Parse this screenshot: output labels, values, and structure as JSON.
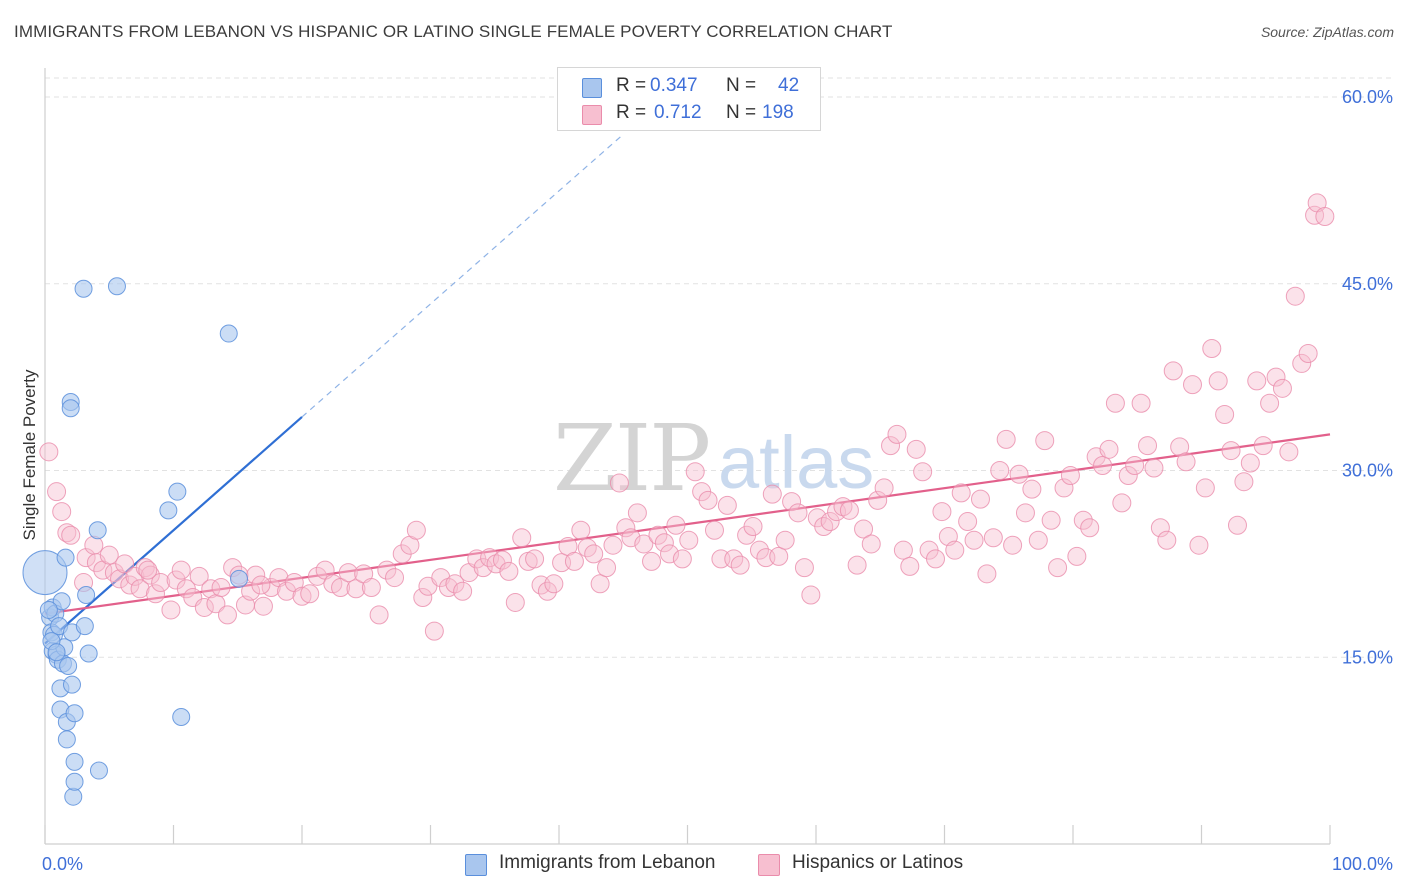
{
  "title": "IMMIGRANTS FROM LEBANON VS HISPANIC OR LATINO SINGLE FEMALE POVERTY CORRELATION CHART",
  "source": "Source: ZipAtlas.com",
  "colors": {
    "series1_fill": "#a9c6ee",
    "series1_stroke": "#5a8fdc",
    "series1_line": "#2f6fd4",
    "series2_fill": "#f7bfd0",
    "series2_stroke": "#ea8cab",
    "series2_line": "#e2608b",
    "axis_text": "#3f6fd8",
    "grid": "#e2e2e2"
  },
  "legend": {
    "r_label": "R =",
    "n_label": "N =",
    "series1": {
      "r": "0.347",
      "n": "42"
    },
    "series2": {
      "r": "0.712",
      "n": "198"
    }
  },
  "chart_data": {
    "type": "scatter",
    "title": "IMMIGRANTS FROM LEBANON VS HISPANIC OR LATINO SINGLE FEMALE POVERTY CORRELATION CHART",
    "xlabel": "",
    "ylabel": "Single Female Poverty",
    "xlim": [
      0,
      100
    ],
    "ylim": [
      0,
      62
    ],
    "x_tick_labels": [
      "0.0%",
      "100.0%"
    ],
    "y_ticks": [
      15,
      30,
      45,
      60
    ],
    "y_tick_labels": [
      "15.0%",
      "30.0%",
      "45.0%",
      "60.0%"
    ],
    "watermark": "ZIPatlas",
    "series": [
      {
        "name": "Immigrants from Lebanon",
        "r": 0.347,
        "n": 42,
        "trend": {
          "x0": 0,
          "y0": 16.1,
          "x1": 20,
          "y1": 34.3,
          "dashed_to_x": 45,
          "dashed_to_y": 57
        },
        "points": [
          [
            0.0,
            21.8
          ],
          [
            0.4,
            18.2
          ],
          [
            0.5,
            17.0
          ],
          [
            0.6,
            15.5
          ],
          [
            0.6,
            19.0
          ],
          [
            0.7,
            16.8
          ],
          [
            0.8,
            18.5
          ],
          [
            0.9,
            15.2
          ],
          [
            1.0,
            14.8
          ],
          [
            1.1,
            17.5
          ],
          [
            1.2,
            12.5
          ],
          [
            1.2,
            10.8
          ],
          [
            1.3,
            19.5
          ],
          [
            1.4,
            14.5
          ],
          [
            1.5,
            15.8
          ],
          [
            1.6,
            23.0
          ],
          [
            1.7,
            9.8
          ],
          [
            1.7,
            8.4
          ],
          [
            1.8,
            14.3
          ],
          [
            2.0,
            35.5
          ],
          [
            2.0,
            35.0
          ],
          [
            2.1,
            12.8
          ],
          [
            2.1,
            17.0
          ],
          [
            2.2,
            3.8
          ],
          [
            2.3,
            10.5
          ],
          [
            2.3,
            5.0
          ],
          [
            2.3,
            6.6
          ],
          [
            3.0,
            44.6
          ],
          [
            3.1,
            17.5
          ],
          [
            3.2,
            20.0
          ],
          [
            3.4,
            15.3
          ],
          [
            4.1,
            25.2
          ],
          [
            4.2,
            5.9
          ],
          [
            5.6,
            44.8
          ],
          [
            9.6,
            26.8
          ],
          [
            10.3,
            28.3
          ],
          [
            10.6,
            10.2
          ],
          [
            14.3,
            41.0
          ],
          [
            15.1,
            21.3
          ],
          [
            0.3,
            18.8
          ],
          [
            0.5,
            16.3
          ],
          [
            0.9,
            15.4
          ]
        ]
      },
      {
        "name": "Hispanics or Latinos",
        "r": 0.712,
        "n": 198,
        "trend": {
          "x0": 0,
          "y0": 18.5,
          "x1": 100,
          "y1": 32.9
        },
        "points": [
          [
            0.3,
            31.5
          ],
          [
            0.9,
            28.3
          ],
          [
            1.3,
            26.7
          ],
          [
            1.7,
            25.0
          ],
          [
            2.0,
            24.8
          ],
          [
            3.2,
            23.0
          ],
          [
            3.8,
            24.0
          ],
          [
            4.0,
            22.6
          ],
          [
            4.5,
            22.0
          ],
          [
            5.0,
            23.2
          ],
          [
            5.4,
            21.8
          ],
          [
            5.8,
            21.3
          ],
          [
            6.2,
            22.5
          ],
          [
            6.6,
            20.8
          ],
          [
            7.0,
            21.5
          ],
          [
            7.4,
            20.5
          ],
          [
            7.8,
            22.2
          ],
          [
            8.2,
            21.6
          ],
          [
            8.6,
            20.1
          ],
          [
            9.0,
            21.0
          ],
          [
            9.8,
            18.8
          ],
          [
            10.2,
            21.2
          ],
          [
            10.6,
            22.0
          ],
          [
            11.0,
            20.5
          ],
          [
            11.5,
            19.8
          ],
          [
            12.0,
            21.5
          ],
          [
            12.4,
            19.0
          ],
          [
            12.9,
            20.5
          ],
          [
            13.3,
            19.3
          ],
          [
            13.7,
            20.6
          ],
          [
            14.2,
            18.4
          ],
          [
            14.6,
            22.2
          ],
          [
            15.1,
            21.6
          ],
          [
            15.6,
            19.2
          ],
          [
            16.0,
            20.3
          ],
          [
            16.4,
            21.6
          ],
          [
            17.0,
            19.1
          ],
          [
            17.6,
            20.6
          ],
          [
            18.2,
            21.4
          ],
          [
            18.8,
            20.3
          ],
          [
            19.4,
            21.0
          ],
          [
            20.0,
            19.9
          ],
          [
            20.6,
            20.1
          ],
          [
            21.2,
            21.5
          ],
          [
            21.8,
            22.0
          ],
          [
            22.4,
            20.9
          ],
          [
            23.0,
            20.6
          ],
          [
            23.6,
            21.8
          ],
          [
            24.2,
            20.5
          ],
          [
            24.8,
            21.7
          ],
          [
            25.4,
            20.6
          ],
          [
            26.0,
            18.4
          ],
          [
            26.6,
            22.0
          ],
          [
            27.2,
            21.4
          ],
          [
            27.8,
            23.3
          ],
          [
            28.4,
            24.0
          ],
          [
            28.9,
            25.2
          ],
          [
            29.4,
            19.8
          ],
          [
            29.8,
            20.7
          ],
          [
            30.3,
            17.1
          ],
          [
            30.8,
            21.4
          ],
          [
            31.4,
            20.6
          ],
          [
            31.9,
            20.9
          ],
          [
            32.5,
            20.3
          ],
          [
            33.0,
            21.8
          ],
          [
            33.6,
            22.9
          ],
          [
            34.1,
            22.2
          ],
          [
            34.6,
            23.0
          ],
          [
            35.1,
            22.5
          ],
          [
            35.6,
            22.8
          ],
          [
            36.1,
            21.9
          ],
          [
            36.6,
            19.4
          ],
          [
            37.1,
            24.6
          ],
          [
            37.6,
            22.7
          ],
          [
            38.1,
            22.9
          ],
          [
            38.6,
            20.8
          ],
          [
            39.1,
            20.3
          ],
          [
            39.6,
            20.9
          ],
          [
            40.2,
            22.6
          ],
          [
            40.7,
            23.9
          ],
          [
            41.2,
            22.7
          ],
          [
            41.7,
            25.2
          ],
          [
            42.2,
            23.8
          ],
          [
            42.7,
            23.3
          ],
          [
            43.2,
            20.9
          ],
          [
            43.7,
            22.2
          ],
          [
            44.2,
            24.0
          ],
          [
            44.7,
            29.0
          ],
          [
            45.2,
            25.4
          ],
          [
            45.6,
            24.6
          ],
          [
            46.1,
            26.6
          ],
          [
            46.6,
            24.1
          ],
          [
            47.2,
            22.7
          ],
          [
            47.7,
            24.8
          ],
          [
            48.2,
            24.2
          ],
          [
            48.6,
            23.3
          ],
          [
            49.1,
            25.6
          ],
          [
            49.6,
            22.9
          ],
          [
            50.1,
            24.4
          ],
          [
            50.6,
            29.9
          ],
          [
            51.1,
            28.3
          ],
          [
            51.6,
            27.6
          ],
          [
            52.1,
            25.2
          ],
          [
            52.6,
            22.9
          ],
          [
            53.1,
            27.2
          ],
          [
            53.6,
            22.9
          ],
          [
            54.1,
            22.4
          ],
          [
            54.6,
            24.8
          ],
          [
            55.1,
            25.5
          ],
          [
            55.6,
            23.6
          ],
          [
            56.1,
            23.0
          ],
          [
            56.6,
            28.1
          ],
          [
            57.1,
            23.1
          ],
          [
            57.6,
            24.4
          ],
          [
            58.1,
            27.5
          ],
          [
            58.6,
            26.6
          ],
          [
            59.1,
            22.2
          ],
          [
            59.6,
            20.0
          ],
          [
            60.1,
            26.2
          ],
          [
            60.6,
            25.5
          ],
          [
            61.1,
            25.9
          ],
          [
            61.6,
            26.7
          ],
          [
            62.1,
            27.1
          ],
          [
            62.6,
            26.8
          ],
          [
            63.2,
            22.4
          ],
          [
            63.7,
            25.3
          ],
          [
            64.3,
            24.1
          ],
          [
            64.8,
            27.6
          ],
          [
            65.3,
            28.6
          ],
          [
            65.8,
            32.0
          ],
          [
            66.3,
            32.9
          ],
          [
            66.8,
            23.6
          ],
          [
            67.3,
            22.3
          ],
          [
            67.8,
            31.7
          ],
          [
            68.3,
            29.9
          ],
          [
            68.8,
            23.6
          ],
          [
            69.3,
            22.9
          ],
          [
            69.8,
            26.7
          ],
          [
            70.3,
            24.7
          ],
          [
            70.8,
            23.6
          ],
          [
            71.3,
            28.2
          ],
          [
            71.8,
            25.9
          ],
          [
            72.3,
            24.4
          ],
          [
            72.8,
            27.7
          ],
          [
            73.3,
            21.7
          ],
          [
            73.8,
            24.6
          ],
          [
            74.3,
            30.0
          ],
          [
            74.8,
            32.5
          ],
          [
            75.3,
            24.0
          ],
          [
            75.8,
            29.7
          ],
          [
            76.3,
            26.6
          ],
          [
            76.8,
            28.5
          ],
          [
            77.3,
            24.4
          ],
          [
            77.8,
            32.4
          ],
          [
            78.3,
            26.0
          ],
          [
            78.8,
            22.2
          ],
          [
            79.3,
            28.6
          ],
          [
            79.8,
            29.6
          ],
          [
            80.3,
            23.1
          ],
          [
            80.8,
            26.0
          ],
          [
            81.3,
            25.4
          ],
          [
            81.8,
            31.1
          ],
          [
            82.3,
            30.4
          ],
          [
            82.8,
            31.7
          ],
          [
            83.3,
            35.4
          ],
          [
            83.8,
            27.4
          ],
          [
            84.3,
            29.6
          ],
          [
            84.8,
            30.4
          ],
          [
            85.3,
            35.4
          ],
          [
            85.8,
            32.0
          ],
          [
            86.3,
            30.2
          ],
          [
            86.8,
            25.4
          ],
          [
            87.3,
            24.4
          ],
          [
            87.8,
            38.0
          ],
          [
            88.3,
            31.9
          ],
          [
            88.8,
            30.7
          ],
          [
            89.3,
            36.9
          ],
          [
            89.8,
            24.0
          ],
          [
            90.3,
            28.6
          ],
          [
            90.8,
            39.8
          ],
          [
            91.3,
            37.2
          ],
          [
            91.8,
            34.5
          ],
          [
            92.3,
            31.6
          ],
          [
            92.8,
            25.6
          ],
          [
            93.3,
            29.1
          ],
          [
            93.8,
            30.6
          ],
          [
            94.3,
            37.2
          ],
          [
            94.8,
            32.0
          ],
          [
            95.3,
            35.4
          ],
          [
            95.8,
            37.5
          ],
          [
            96.3,
            36.6
          ],
          [
            96.8,
            31.5
          ],
          [
            97.3,
            44.0
          ],
          [
            97.8,
            38.6
          ],
          [
            98.3,
            39.4
          ],
          [
            98.8,
            50.5
          ],
          [
            99.0,
            51.5
          ],
          [
            99.6,
            50.4
          ],
          [
            3.0,
            21.0
          ],
          [
            8.0,
            22.0
          ],
          [
            16.8,
            20.8
          ]
        ]
      }
    ]
  },
  "bottom_legend": {
    "series1": "Immigrants from Lebanon",
    "series2": "Hispanics or Latinos"
  }
}
